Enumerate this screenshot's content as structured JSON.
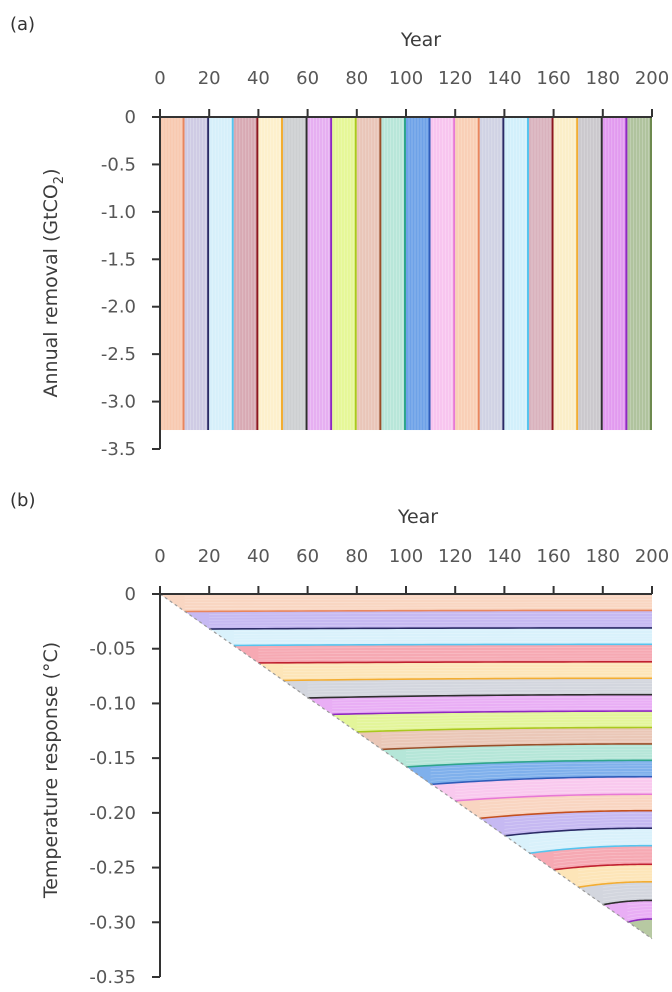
{
  "chart_data": [
    {
      "panel_label": "(a)",
      "type": "bar",
      "xlabel": "Year",
      "ylabel": "Annual removal (GtCO",
      "ylabel_subscript": "2",
      "ylabel_suffix": ")",
      "xlim": [
        0,
        200
      ],
      "ylim": [
        -3.5,
        0
      ],
      "xticks": [
        0,
        20,
        40,
        60,
        80,
        100,
        120,
        140,
        160,
        180,
        200
      ],
      "xtick_labels": [
        "0",
        "20",
        "40",
        "60",
        "80",
        "100",
        "120",
        "140",
        "160",
        "180",
        "200"
      ],
      "yticks": [
        0,
        -0.5,
        -1.0,
        -1.5,
        -2.0,
        -2.5,
        -3.0,
        -3.5
      ],
      "ytick_labels": [
        "0",
        "-0.5",
        "-1.0",
        "-1.5",
        "-2.0",
        "-2.5",
        "-3.0",
        "-3.5"
      ],
      "block_years": 10,
      "x": [
        0,
        10,
        20,
        30,
        40,
        50,
        60,
        70,
        80,
        90,
        100,
        110,
        120,
        130,
        140,
        150,
        160,
        170,
        180,
        190
      ],
      "values": [
        -3.3,
        -3.3,
        -3.3,
        -3.3,
        -3.3,
        -3.3,
        -3.3,
        -3.3,
        -3.3,
        -3.3,
        -3.3,
        -3.3,
        -3.3,
        -3.3,
        -3.3,
        -3.3,
        -3.3,
        -3.3,
        -3.3,
        -3.3
      ],
      "fill_colors": [
        "#f8c9b0",
        "#cfcbe4",
        "#d6effa",
        "#d8a9b3",
        "#fdf0cc",
        "#cdcfd1",
        "#e6aff1",
        "#e6f797",
        "#e9c5b8",
        "#b8e6d9",
        "#6ea2e8",
        "#f8c5ef",
        "#f9cfb6",
        "#d0d2e4",
        "#d2f0fb",
        "#d9b2bd",
        "#fbeec8",
        "#cbc8cd",
        "#e29aef",
        "#b0c39e"
      ],
      "edge_colors": [
        "#e9865e",
        "#2b2b66",
        "#56c4ee",
        "#8c1620",
        "#f3ad32",
        "#2e2e2e",
        "#8e28c2",
        "#aac81e",
        "#9a4f2a",
        "#2ea58c",
        "#2f5cb9",
        "#e879d6",
        "#e9865e",
        "#2b2b66",
        "#56c4ee",
        "#8c1620",
        "#f3ad32",
        "#2e2e2e",
        "#8e28c2",
        "#6d8a4f"
      ]
    },
    {
      "panel_label": "(b)",
      "type": "area",
      "xlabel": "Year",
      "ylabel": "Temperature response (°C)",
      "xlim": [
        0,
        200
      ],
      "ylim": [
        -0.35,
        0
      ],
      "xticks": [
        0,
        20,
        40,
        60,
        80,
        100,
        120,
        140,
        160,
        180,
        200
      ],
      "xtick_labels": [
        "0",
        "20",
        "40",
        "60",
        "80",
        "100",
        "120",
        "140",
        "160",
        "180",
        "200"
      ],
      "yticks": [
        0,
        -0.05,
        -0.1,
        -0.15,
        -0.2,
        -0.25,
        -0.3,
        -0.35
      ],
      "ytick_labels": [
        "0",
        "-0.05",
        "-0.10",
        "-0.15",
        "-0.20",
        "-0.25",
        "-0.30",
        "-0.35"
      ],
      "x": [
        10,
        20,
        30,
        40,
        50,
        60,
        70,
        80,
        90,
        100,
        110,
        120,
        130,
        140,
        150,
        160,
        170,
        180,
        190,
        200
      ],
      "cumulative_response_at_year_200": [
        -0.015,
        -0.031,
        -0.046,
        -0.062,
        -0.077,
        -0.092,
        -0.107,
        -0.122,
        -0.137,
        -0.152,
        -0.167,
        -0.183,
        -0.198,
        -0.214,
        -0.23,
        -0.247,
        -0.263,
        -0.28,
        -0.297,
        -0.315
      ],
      "cumulative_response_at_onset": [
        -0.016,
        -0.032,
        -0.047,
        -0.063,
        -0.079,
        -0.095,
        -0.11,
        -0.126,
        -0.142,
        -0.158,
        -0.174,
        -0.189,
        -0.205,
        -0.221,
        -0.237,
        -0.252,
        -0.268,
        -0.284,
        -0.3,
        -0.315
      ],
      "fill_colors": [
        "#f9d6c2",
        "#c6b9f2",
        "#d9f1fb",
        "#f6a9b3",
        "#fde5b8",
        "#d3d6de",
        "#e9aef5",
        "#e3f59a",
        "#eac7b7",
        "#b5e6d8",
        "#7fb0ec",
        "#f9c9ee",
        "#f9d5c1",
        "#c6b9f2",
        "#d9f1fb",
        "#f6a9b3",
        "#fde5b8",
        "#d3d6de",
        "#e9aef5",
        "#b7c9a2"
      ],
      "edge_colors": [
        "#e9865e",
        "#2b2b66",
        "#56c4ee",
        "#c02030",
        "#f3ad32",
        "#2e2e2e",
        "#8e28c2",
        "#aac81e",
        "#9a4f2a",
        "#2ea58c",
        "#2f5cb9",
        "#e879d6",
        "#c4501f",
        "#2b2b66",
        "#56c4ee",
        "#c02030",
        "#f3ad32",
        "#2e2e2e",
        "#8e28c2",
        "#6d8a4f"
      ]
    }
  ]
}
